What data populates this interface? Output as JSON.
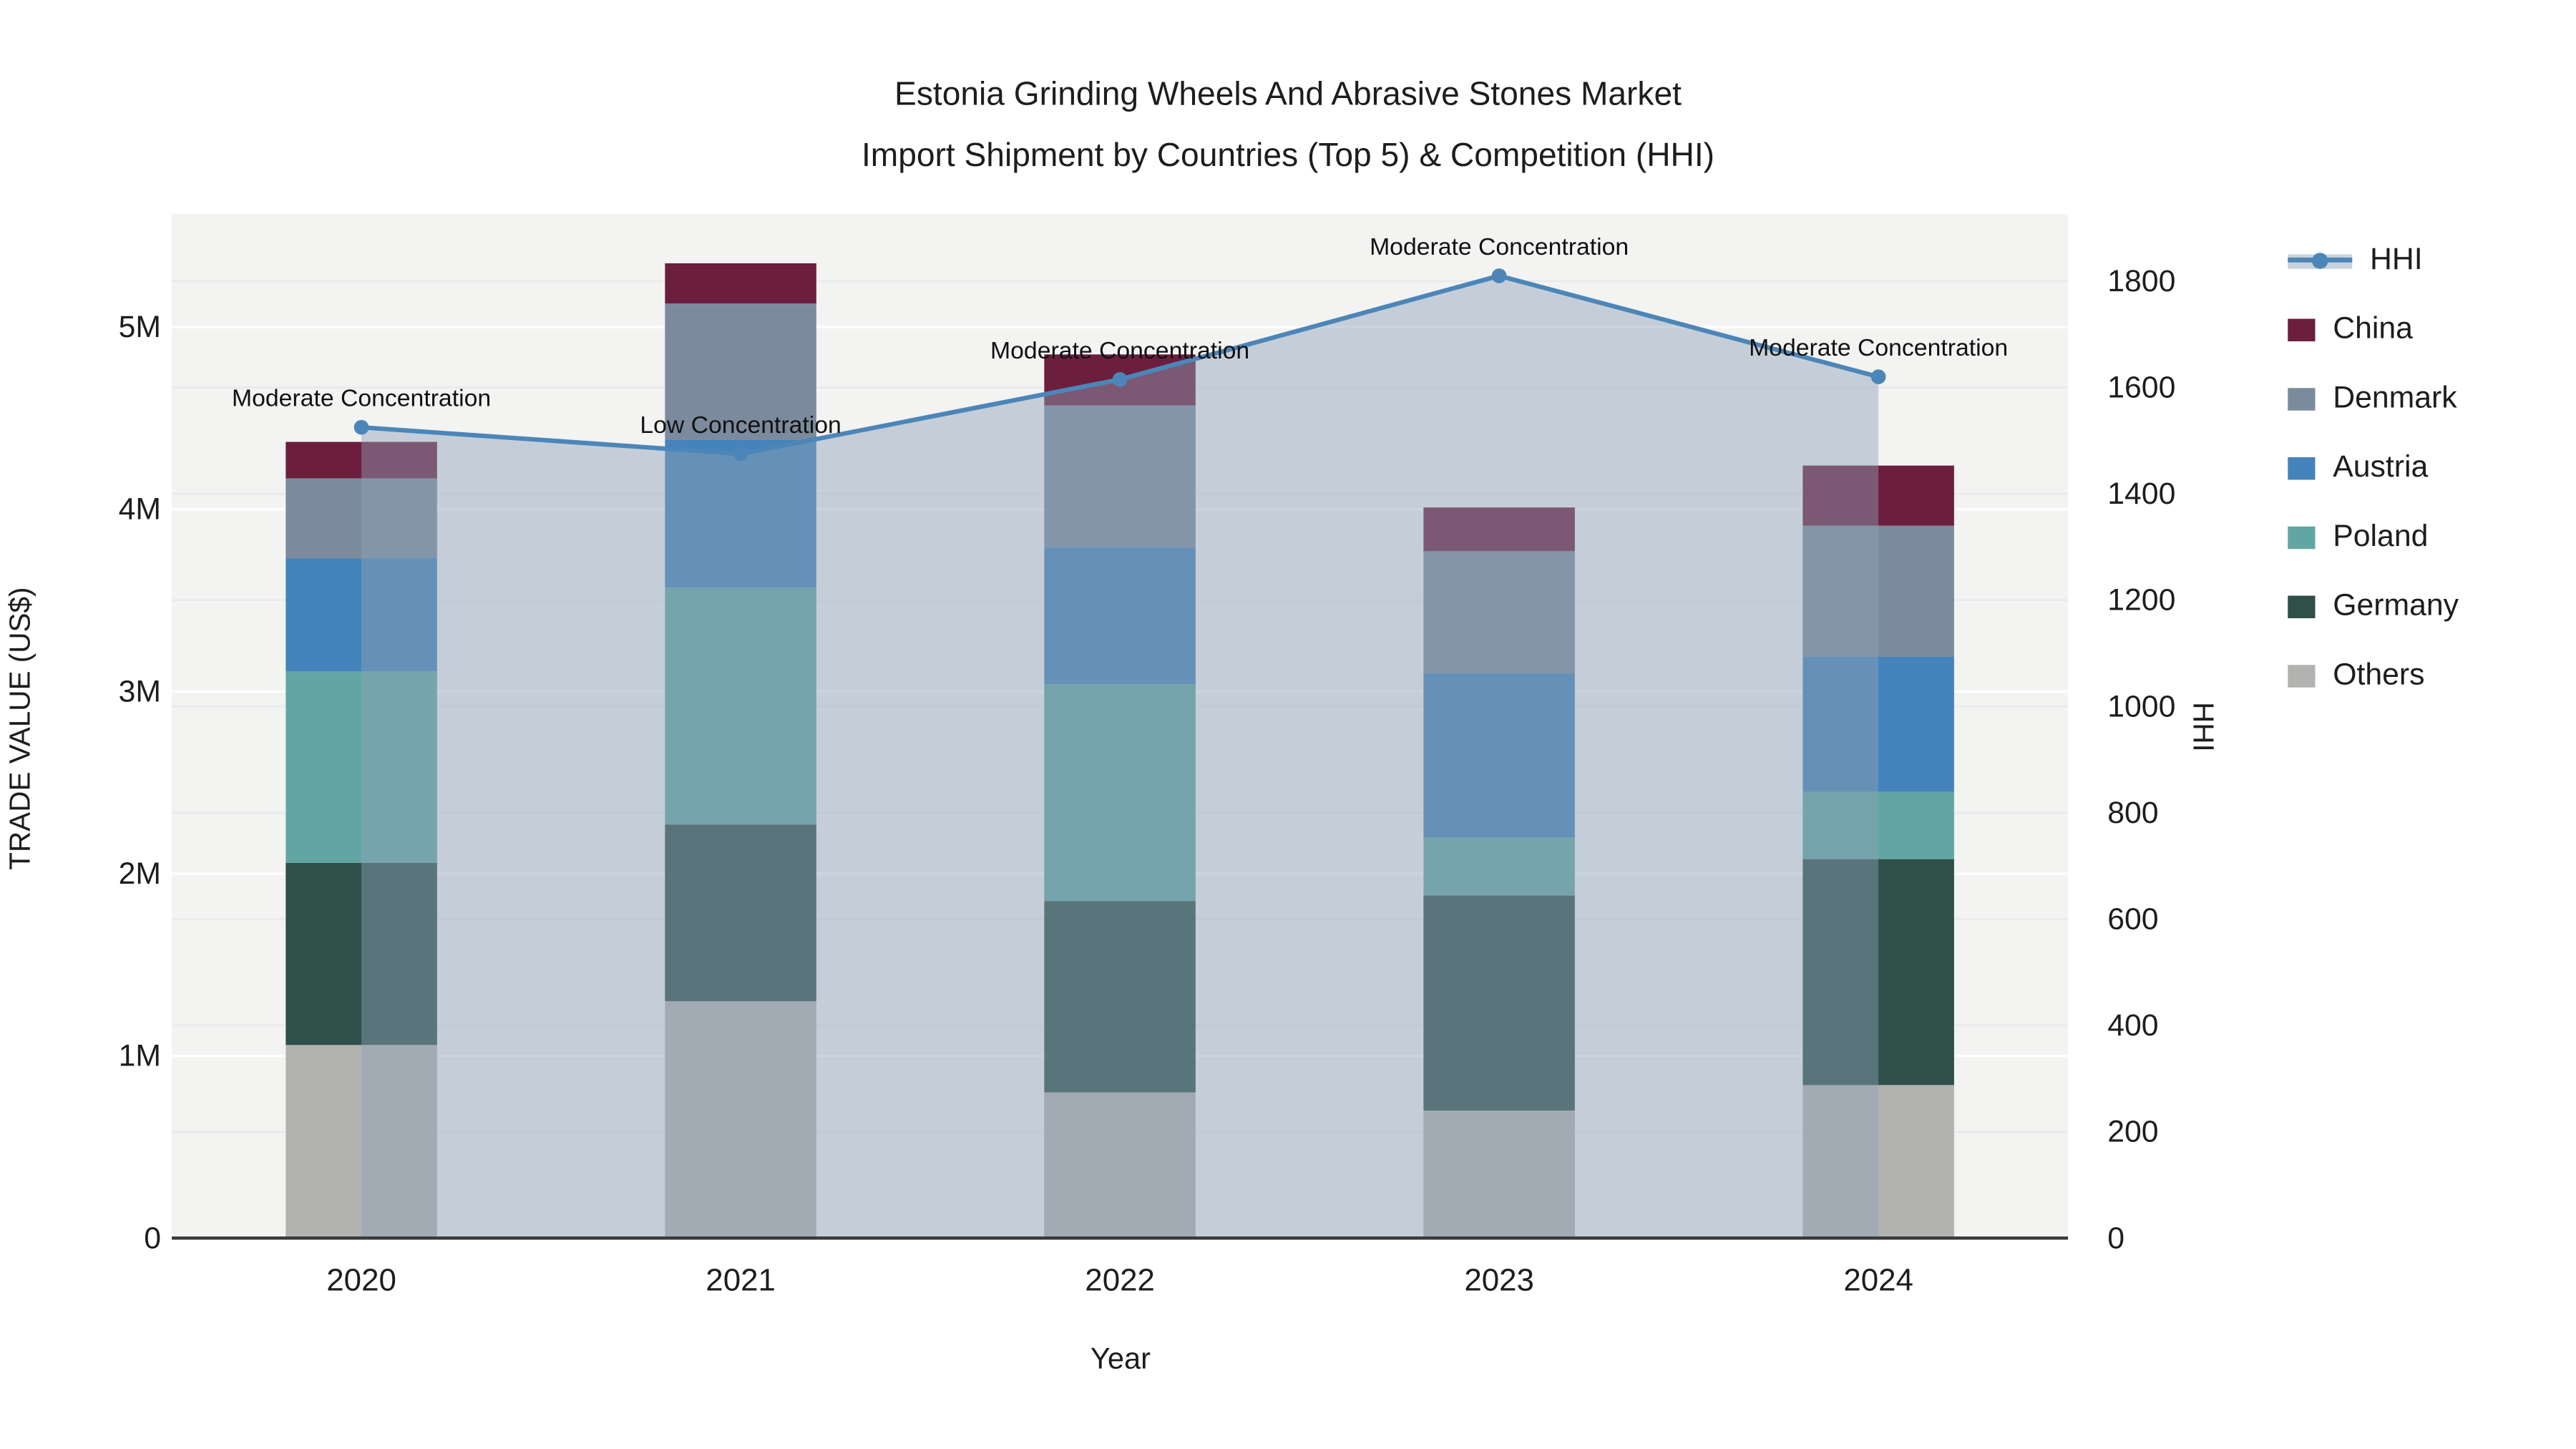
{
  "chart_data": {
    "type": "combo-stacked-bar-line",
    "title_line1": "Estonia Grinding Wheels And Abrasive Stones Market",
    "title_line2": "Import Shipment by Countries (Top 5) & Competition (HHI)",
    "xlabel": "Year",
    "ylabel_left": "TRADE VALUE (US$)",
    "ylabel_right": "HHI",
    "units": "millions of US$ (estimated from axis)",
    "categories": [
      "2020",
      "2021",
      "2022",
      "2023",
      "2024"
    ],
    "bar_series": [
      {
        "name": "Others",
        "color": "#b2b2b1",
        "values": [
          1.06,
          1.3,
          0.8,
          0.7,
          0.84
        ]
      },
      {
        "name": "Germany",
        "color": "#2f4f49",
        "values": [
          1.0,
          0.97,
          1.05,
          1.18,
          1.24
        ]
      },
      {
        "name": "Poland",
        "color": "#61a6a2",
        "values": [
          1.05,
          1.3,
          1.19,
          0.32,
          0.37
        ]
      },
      {
        "name": "Austria",
        "color": "#4483bb",
        "values": [
          0.62,
          0.81,
          0.75,
          0.9,
          0.74
        ]
      },
      {
        "name": "Denmark",
        "color": "#7b8b9d",
        "values": [
          0.44,
          0.75,
          0.78,
          0.67,
          0.72
        ]
      },
      {
        "name": "China",
        "color": "#6c1e3d",
        "values": [
          0.2,
          0.22,
          0.28,
          0.24,
          0.33
        ]
      }
    ],
    "line_series": {
      "name": "HHI",
      "color": "#4c86b8",
      "area_fill_color": "rgba(143,162,184,0.45)",
      "legend_band_color": "#c9d2dc",
      "values": [
        1525,
        1475,
        1615,
        1810,
        1620
      ]
    },
    "annotations": [
      {
        "category": "2020",
        "text": "Moderate Concentration"
      },
      {
        "category": "2021",
        "text": "Low Concentration"
      },
      {
        "category": "2022",
        "text": "Moderate Concentration"
      },
      {
        "category": "2023",
        "text": "Moderate Concentration"
      },
      {
        "category": "2024",
        "text": "Moderate Concentration"
      }
    ],
    "legend_order": [
      "HHI",
      "China",
      "Denmark",
      "Austria",
      "Poland",
      "Germany",
      "Others"
    ],
    "axes": {
      "left": {
        "tick_labels": [
          "0",
          "1M",
          "2M",
          "3M",
          "4M",
          "5M"
        ],
        "tick_values": [
          0,
          1,
          2,
          3,
          4,
          5
        ],
        "range": [
          0,
          5.62
        ]
      },
      "right": {
        "tick_values": [
          0,
          200,
          400,
          600,
          800,
          1000,
          1200,
          1400,
          1600,
          1800
        ],
        "range": [
          0,
          1926
        ]
      },
      "grid_on": true,
      "plot_bg": "#f3f3f2",
      "grid_color_major": "rgba(255,255,255,0.9)",
      "grid_color_minor": "#e9eaec",
      "axis_line_color": "#3b3b3b",
      "legend_position": "right-top"
    }
  }
}
